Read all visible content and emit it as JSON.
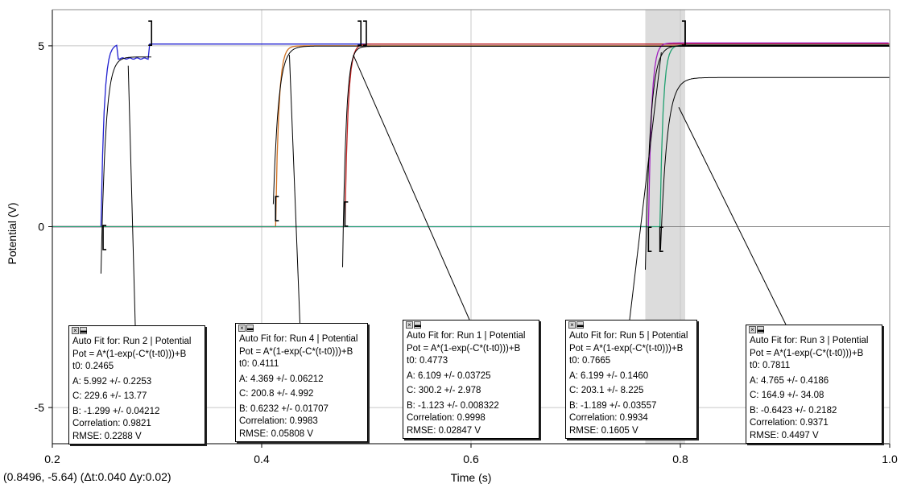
{
  "status": {
    "readout": "(0.8496, -5.64) (Δt:0.040 Δy:0.02)"
  },
  "chart_data": {
    "type": "line",
    "title": "",
    "xlabel": "Time (s)",
    "ylabel": "Potential (V)",
    "xlim": [
      0.2,
      1.0
    ],
    "ylim": [
      -6.0,
      6.0
    ],
    "x_ticks": [
      0.2,
      0.4,
      0.6,
      0.8,
      1.0
    ],
    "x_tick_labels": [
      "0.2",
      "0.4",
      "0.6",
      "0.8",
      "1.0"
    ],
    "y_ticks": [
      5,
      0,
      -5
    ],
    "y_tick_labels": [
      "5",
      "0",
      "-5"
    ],
    "grid": true,
    "selection_band": [
      0.7665,
      0.8046
    ],
    "series": [
      {
        "run": "Run 2",
        "color": "#2020d0",
        "t0": 0.2465,
        "step": 0.2465,
        "high": 5.05
      },
      {
        "run": "Run 4",
        "color": "#d07020",
        "t0": 0.4111,
        "step": 0.4133,
        "high": 5.0
      },
      {
        "run": "Run 1",
        "color": "#c02020",
        "t0": 0.4773,
        "step": 0.4795,
        "high": 5.05
      },
      {
        "run": "Run 5",
        "color": "#a020c0",
        "t0": 0.7665,
        "step": 0.7695,
        "high": 5.08
      },
      {
        "run": "Run 3",
        "color": "#20a070",
        "t0": 0.7811,
        "step": 0.7805,
        "high": 5.02
      }
    ],
    "fits": [
      {
        "A": 5.992,
        "C": 229.6,
        "B": -1.299,
        "t0": 0.2465,
        "x_end": 0.295
      },
      {
        "A": 4.369,
        "C": 200.8,
        "B": 0.6232,
        "t0": 0.4111,
        "x_end": 1.0
      },
      {
        "A": 6.109,
        "C": 300.2,
        "B": -1.123,
        "t0": 0.4773,
        "x_end": 1.0
      },
      {
        "A": 6.199,
        "C": 203.1,
        "B": -1.189,
        "t0": 0.7665,
        "x_end": 1.0
      },
      {
        "A": 4.765,
        "C": 164.9,
        "B": -0.6423,
        "t0": 0.7811,
        "x_end": 1.0
      }
    ],
    "brackets": [
      {
        "x0": 0.2485,
        "x1": 0.2948,
        "y_low": -0.3,
        "y_high": 5.35
      },
      {
        "x0": 0.4133,
        "x1": 0.4948,
        "y_low": 0.5,
        "y_high": 5.35
      },
      {
        "x0": 0.4795,
        "x1": 0.5,
        "y_low": 0.35,
        "y_high": 5.35
      },
      {
        "x0": 0.7695,
        "x1": 0.8046,
        "y_low": -0.35,
        "y_high": 5.35
      },
      {
        "x0": 0.7805,
        "x1": 0.8046,
        "y_low": -0.35,
        "y_high": 5.35
      }
    ],
    "annotations": [
      {
        "title": "Auto Fit for: Run 2 | Potential",
        "eq": "Pot = A*(1-exp(-C*(t-t0)))+B",
        "t0": "t0: 0.2465",
        "a": "A: 5.992 +/- 0.2253",
        "c": "C: 229.6 +/- 13.77",
        "b": "B: -1.299 +/- 0.04212",
        "corr": "Correlation: 0.9821",
        "rmse": "RMSE: 0.2288 V",
        "leader_x": 0.2725,
        "leader_y": 4.45
      },
      {
        "title": "Auto Fit for: Run 4 | Potential",
        "eq": "Pot = A*(1-exp(-C*(t-t0)))+B",
        "t0": "t0: 0.4111",
        "a": "A: 4.369 +/- 0.06212",
        "c": "C: 200.8 +/- 4.992",
        "b": "B: 0.6232 +/- 0.01707",
        "corr": "Correlation: 0.9983",
        "rmse": "RMSE: 0.05808 V",
        "leader_x": 0.4265,
        "leader_y": 4.75
      },
      {
        "title": "Auto Fit for: Run 1 | Potential",
        "eq": "Pot = A*(1-exp(-C*(t-t0)))+B",
        "t0": "t0: 0.4773",
        "a": "A: 6.109 +/- 0.03725",
        "c": "C: 300.2 +/- 2.978",
        "b": "B: -1.123 +/- 0.008322",
        "corr": "Correlation: 0.9998",
        "rmse": "RMSE: 0.02847 V",
        "leader_x": 0.4875,
        "leader_y": 4.75
      },
      {
        "title": "Auto Fit for: Run 5 | Potential",
        "eq": "Pot = A*(1-exp(-C*(t-t0)))+B",
        "t0": "t0: 0.7665",
        "a": "A: 6.199 +/- 0.1460",
        "c": "C: 203.1 +/- 8.225",
        "b": "B: -1.189 +/- 0.03557",
        "corr": "Correlation: 0.9934",
        "rmse": "RMSE: 0.1605 V",
        "leader_x": 0.7818,
        "leader_y": 4.82
      },
      {
        "title": "Auto Fit for: Run 3 | Potential",
        "eq": "Pot = A*(1-exp(-C*(t-t0)))+B",
        "t0": "t0: 0.7811",
        "a": "A: 4.765 +/- 0.4186",
        "c": "C: 164.9 +/- 34.08",
        "b": "B: -0.6423 +/- 0.2182",
        "corr": "Correlation: 0.9371",
        "rmse": "RMSE: 0.4497 V",
        "leader_x": 0.7985,
        "leader_y": 3.3
      }
    ]
  }
}
